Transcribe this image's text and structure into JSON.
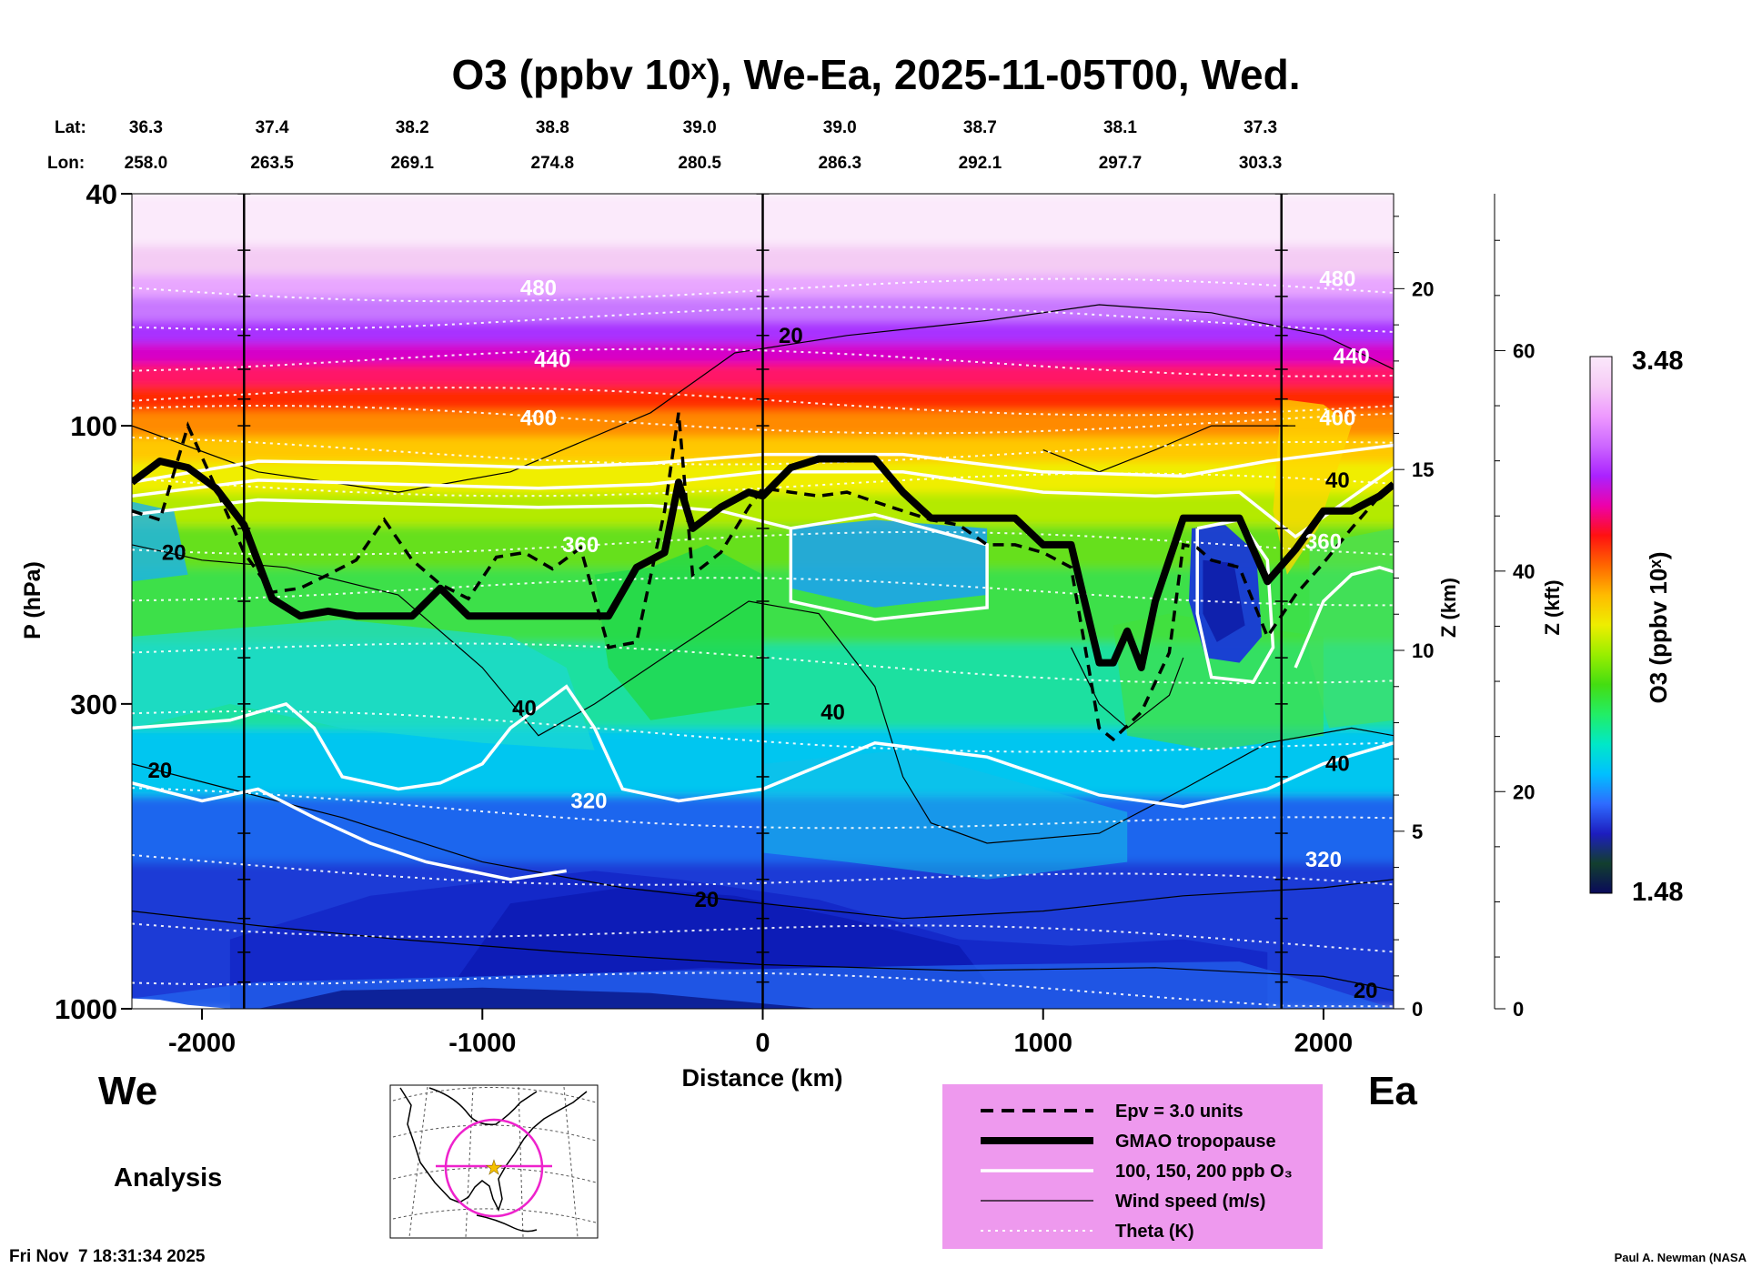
{
  "chart_data": {
    "type": "heatmap",
    "title": "O3 (ppbv 10ˣ), We-Ea, 2025-11-05T00, Wed.",
    "xlabel": "Distance (km)",
    "ylabel": "P (hPa)",
    "xlim": [
      -2250,
      2250
    ],
    "ylim": [
      1000,
      40
    ],
    "y_log_scale": true,
    "x_ticks": [
      -2000,
      -1000,
      0,
      1000,
      2000
    ],
    "x_tick_labels": [
      "-2000",
      "-1000",
      "0",
      "1000",
      "2000"
    ],
    "y_ticks": [
      40,
      100,
      300,
      1000
    ],
    "y_tick_labels": [
      "40",
      "100",
      "300",
      "1000"
    ],
    "z_km_axis": {
      "label": "Z (km)",
      "ticks": [
        "0",
        "5",
        "10",
        "15",
        "20"
      ],
      "values": [
        0,
        5,
        10,
        15,
        20
      ]
    },
    "z_kft_axis": {
      "label": "Z (kft)",
      "ticks": [
        "0",
        "20",
        "40",
        "60"
      ],
      "values": [
        0,
        20,
        40,
        60
      ]
    },
    "colorbar": {
      "label": "O3 (ppbv 10ˣ)",
      "min_label": "1.48",
      "max_label": "3.48",
      "min": 1.48,
      "max": 3.48,
      "colors": [
        "#0a0a5a",
        "#123f2e",
        "#1d1dbf",
        "#2e6bff",
        "#00c0ff",
        "#00e8c8",
        "#22ee66",
        "#44dd11",
        "#99ee00",
        "#eeee00",
        "#ffbb00",
        "#ff6600",
        "#ff1111",
        "#ee00aa",
        "#aa22ff",
        "#cc66ff",
        "#ee99ff",
        "#f6ccf6",
        "#fbe8fb"
      ]
    },
    "lat_label": "Lat:",
    "lon_label": "Lon:",
    "lat_values": [
      "36.3",
      "37.4",
      "38.2",
      "38.8",
      "39.0",
      "39.0",
      "38.7",
      "38.1",
      "37.3"
    ],
    "lon_values": [
      "258.0",
      "263.5",
      "269.1",
      "274.8",
      "280.5",
      "286.3",
      "292.1",
      "297.7",
      "303.3"
    ],
    "lat_lon_distance_km": [
      -2200,
      -1750,
      -1250,
      -750,
      -225,
      275,
      775,
      1275,
      1775
    ],
    "vertical_marker_lines_km": [
      -1850,
      0,
      1850
    ],
    "tropopause": {
      "x_km": [
        -2250,
        -2150,
        -2050,
        -1950,
        -1850,
        -1750,
        -1650,
        -1550,
        -1450,
        -1350,
        -1250,
        -1150,
        -1050,
        -950,
        -850,
        -750,
        -650,
        -550,
        -450,
        -350,
        -300,
        -250,
        -150,
        -50,
        0,
        100,
        200,
        300,
        400,
        500,
        600,
        700,
        800,
        900,
        1000,
        1100,
        1200,
        1250,
        1300,
        1350,
        1400,
        1500,
        1600,
        1700,
        1800,
        1900,
        2000,
        2100,
        2200,
        2250
      ],
      "p_hpa": [
        125,
        115,
        118,
        128,
        148,
        198,
        212,
        208,
        212,
        212,
        212,
        190,
        212,
        212,
        212,
        212,
        212,
        212,
        175,
        165,
        125,
        150,
        138,
        130,
        132,
        118,
        114,
        114,
        114,
        130,
        144,
        144,
        144,
        144,
        160,
        160,
        255,
        255,
        225,
        260,
        200,
        144,
        144,
        144,
        185,
        163,
        140,
        140,
        132,
        126
      ]
    },
    "epv_3": {
      "x_km": [
        -2250,
        -2150,
        -2050,
        -1950,
        -1850,
        -1750,
        -1650,
        -1550,
        -1450,
        -1350,
        -1250,
        -1150,
        -1050,
        -950,
        -850,
        -750,
        -650,
        -550,
        -450,
        -350,
        -300,
        -250,
        -150,
        -50,
        0,
        100,
        200,
        300,
        400,
        500,
        600,
        700,
        800,
        900,
        1000,
        1100,
        1200,
        1250,
        1350,
        1450,
        1500,
        1550,
        1600,
        1700,
        1800,
        1900,
        2000,
        2100,
        2200
      ],
      "p_hpa": [
        140,
        145,
        100,
        128,
        165,
        193,
        190,
        180,
        170,
        145,
        170,
        187,
        198,
        168,
        165,
        176,
        162,
        240,
        235,
        140,
        95,
        180,
        165,
        138,
        128,
        130,
        132,
        130,
        135,
        140,
        145,
        148,
        160,
        160,
        165,
        175,
        330,
        345,
        310,
        245,
        160,
        162,
        170,
        175,
        230,
        195,
        172,
        150,
        132
      ]
    },
    "o3_contours_ppb": [
      "100",
      "150",
      "200"
    ],
    "contour_labels": {
      "theta_K": [
        {
          "text": "480",
          "x_km": -800,
          "p_hpa": 58
        },
        {
          "text": "440",
          "x_km": -750,
          "p_hpa": 77
        },
        {
          "text": "400",
          "x_km": -800,
          "p_hpa": 97
        },
        {
          "text": "360",
          "x_km": -650,
          "p_hpa": 160
        },
        {
          "text": "320",
          "x_km": -620,
          "p_hpa": 440
        },
        {
          "text": "480",
          "x_km": 2050,
          "p_hpa": 56
        },
        {
          "text": "440",
          "x_km": 2100,
          "p_hpa": 76
        },
        {
          "text": "400",
          "x_km": 2050,
          "p_hpa": 97
        },
        {
          "text": "360",
          "x_km": 2000,
          "p_hpa": 158
        },
        {
          "text": "320",
          "x_km": 2000,
          "p_hpa": 555
        }
      ],
      "wind_ms": [
        {
          "text": "20",
          "x_km": 100,
          "p_hpa": 70
        },
        {
          "text": "20",
          "x_km": -2100,
          "p_hpa": 165
        },
        {
          "text": "40",
          "x_km": -850,
          "p_hpa": 305
        },
        {
          "text": "40",
          "x_km": 250,
          "p_hpa": 310
        },
        {
          "text": "20",
          "x_km": -2150,
          "p_hpa": 390
        },
        {
          "text": "40",
          "x_km": 2050,
          "p_hpa": 124
        },
        {
          "text": "40",
          "x_km": 2050,
          "p_hpa": 380
        },
        {
          "text": "20",
          "x_km": -200,
          "p_hpa": 650
        },
        {
          "text": "20",
          "x_km": 2150,
          "p_hpa": 930
        }
      ]
    },
    "legend": {
      "placement": "bottom-center",
      "items": [
        {
          "label": "Epv = 3.0 units",
          "style": "dashed-black"
        },
        {
          "label": "GMAO tropopause",
          "style": "thick-black"
        },
        {
          "label": "100, 150, 200 ppb O₃",
          "style": "white"
        },
        {
          "label": "Wind speed (m/s)",
          "style": "thin-black"
        },
        {
          "label": "Theta (K)",
          "style": "dotted-white"
        }
      ]
    }
  },
  "labels": {
    "west": "We",
    "east": "Ea",
    "analysis": "Analysis",
    "timestamp": "Fri Nov  7 18:31:34 2025",
    "credit": "Paul A. Newman (NASA"
  }
}
